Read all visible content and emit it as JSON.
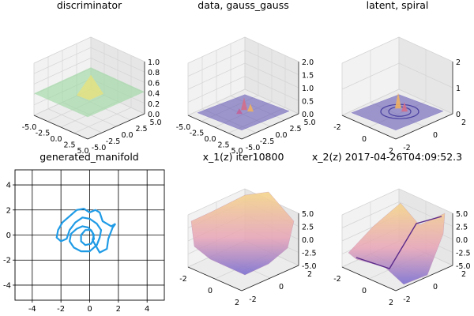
{
  "figure": {
    "titles": [
      "discriminator",
      "data, gauss_gauss",
      "latent, spiral",
      "generated_manifold",
      "x_1(z) iter10800",
      "x_2(z) 2017-04-26T04:09:52.3"
    ]
  },
  "colors": {
    "grid_pane": "#f2f2f2",
    "grid_pane_dark": "#e6e6e6",
    "grid_line": "#d4d4d4",
    "spiral_line": "#1f9be6",
    "surface_purple": "#7a6fd1",
    "surface_yellow": "#f5d58a"
  },
  "chart_data": [
    {
      "type": "surface",
      "title": "discriminator",
      "x_ticks": [
        "-5.0",
        "-2.5",
        "0.0",
        "2.5",
        "5.0"
      ],
      "y_ticks": [
        "-5.0",
        "-2.5",
        "0.0",
        "2.5",
        "5.0"
      ],
      "z_ticks": [
        "0.0",
        "0.2",
        "0.4",
        "0.6",
        "0.8",
        "1.0"
      ],
      "zlim": [
        0,
        1
      ],
      "surface": "flat, approximately 0.5, light green-yellow with a slight bump near center",
      "colormap": "viridis (pale)"
    },
    {
      "type": "surface",
      "title": "data, gauss_gauss",
      "x_ticks": [
        "-5.0",
        "-2.5",
        "0.0",
        "2.5",
        "5.0"
      ],
      "y_ticks": [
        "-5.0",
        "-2.5",
        "0.0",
        "2.5",
        "5.0"
      ],
      "z_ticks": [
        "0.0",
        "0.5",
        "1.0",
        "1.5",
        "2.0"
      ],
      "zlim": [
        0,
        2
      ],
      "surface": "near zero with small peaks near center",
      "colormap": "plasma (translucent purple)"
    },
    {
      "type": "surface",
      "title": "latent, spiral",
      "x_ticks": [
        "-2",
        "0",
        "2"
      ],
      "y_ticks": [
        "-2",
        "0",
        "2"
      ],
      "z_ticks": [
        "0",
        "1",
        "2"
      ],
      "zlim": [
        0,
        2
      ],
      "surface": "near zero with ring-shaped ridges and a central spike",
      "colormap": "plasma (translucent purple)"
    },
    {
      "type": "line",
      "title": "generated_manifold",
      "x_ticks": [
        "-4",
        "-2",
        "0",
        "2",
        "4"
      ],
      "y_ticks": [
        "-4",
        "-2",
        "0",
        "2",
        "4"
      ],
      "xlim": [
        -5.2,
        5.2
      ],
      "ylim": [
        -5.2,
        5.2
      ],
      "grid": true,
      "series": [
        {
          "points": [
            [
              1.8,
              0.9
            ],
            [
              1.5,
              0.7
            ],
            [
              1.2,
              0.9
            ],
            [
              0.9,
              1.1
            ],
            [
              0.7,
              1.8
            ],
            [
              0.4,
              2.0
            ],
            [
              0.0,
              1.8
            ],
            [
              -0.4,
              2.1
            ],
            [
              -0.9,
              2.0
            ],
            [
              -1.4,
              1.5
            ],
            [
              -1.9,
              1.0
            ],
            [
              -2.2,
              0.4
            ],
            [
              -2.3,
              -0.2
            ],
            [
              -2.0,
              -0.5
            ],
            [
              -1.6,
              -0.3
            ],
            [
              -1.4,
              0.4
            ],
            [
              -1.0,
              1.0
            ],
            [
              -0.5,
              1.4
            ],
            [
              0.0,
              1.3
            ],
            [
              0.5,
              0.9
            ],
            [
              0.8,
              0.4
            ],
            [
              0.7,
              -0.2
            ],
            [
              0.5,
              -0.8
            ],
            [
              0.0,
              -1.3
            ],
            [
              -0.6,
              -1.3
            ],
            [
              -1.1,
              -1.0
            ],
            [
              -1.4,
              -0.5
            ],
            [
              -1.3,
              0.1
            ],
            [
              -0.9,
              0.5
            ],
            [
              -0.5,
              0.7
            ],
            [
              -0.1,
              0.6
            ],
            [
              0.2,
              0.2
            ],
            [
              0.3,
              -0.3
            ],
            [
              0.1,
              -0.7
            ],
            [
              -0.3,
              -0.8
            ],
            [
              -0.6,
              -0.5
            ],
            [
              -0.6,
              0.0
            ],
            [
              -0.3,
              0.4
            ],
            [
              0.1,
              0.4
            ],
            [
              0.3,
              0.0
            ],
            [
              0.2,
              -0.4
            ],
            [
              0.7,
              -1.4
            ],
            [
              1.2,
              -1.1
            ],
            [
              1.3,
              -0.3
            ],
            [
              1.6,
              0.6
            ],
            [
              1.8,
              0.9
            ]
          ]
        }
      ]
    },
    {
      "type": "surface",
      "title": "x_1(z) iter10800",
      "x_ticks": [
        "-2",
        "0",
        "2"
      ],
      "y_ticks": [
        "-2",
        "0",
        "2"
      ],
      "z_ticks": [
        "-5.0",
        "-2.5",
        "0.0",
        "2.5",
        "5.0"
      ],
      "zlim": [
        -5,
        5
      ],
      "surface": "smooth hill, yellow high at back, purple low at front",
      "colormap": "plasma (translucent)"
    },
    {
      "type": "surface",
      "title": "x_2(z) 2017-04-26T04:09:52.3",
      "x_ticks": [
        "-2",
        "0",
        "2"
      ],
      "y_ticks": [
        "-2",
        "0",
        "2"
      ],
      "z_ticks": [
        "-5.0",
        "-2.5",
        "0.0",
        "2.5",
        "5.0"
      ],
      "zlim": [
        -5,
        5
      ],
      "surface": "saddle-like with deep fold, purple to yellow",
      "colormap": "plasma (translucent)"
    }
  ]
}
